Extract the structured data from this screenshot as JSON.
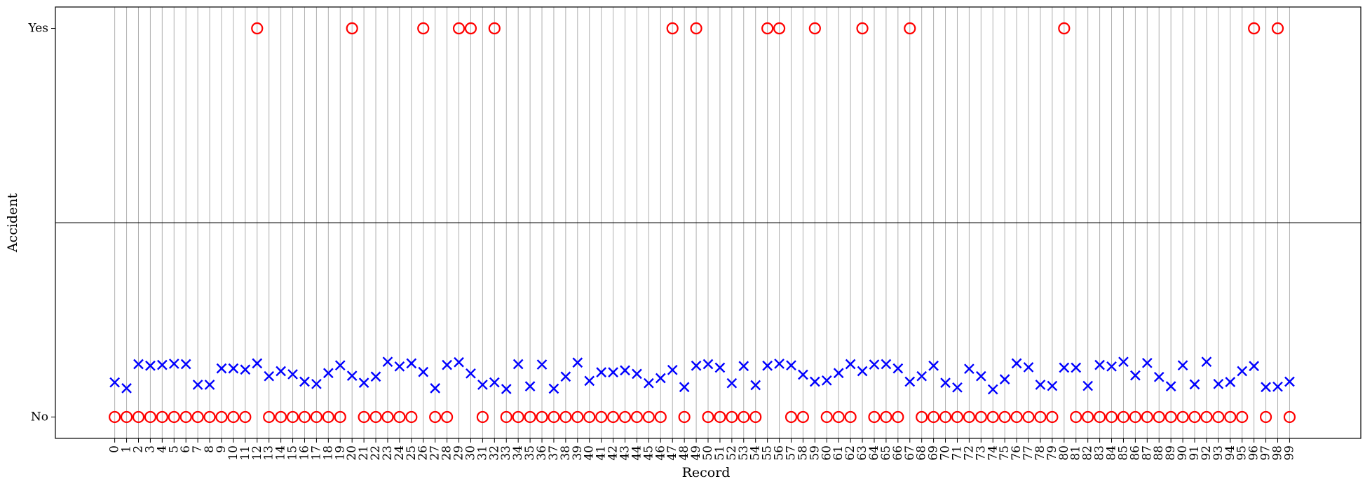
{
  "chart_data": {
    "type": "scatter",
    "xlabel": "Record",
    "ylabel": "Accident",
    "y_categories": [
      "No",
      "Yes"
    ],
    "x": [
      0,
      1,
      2,
      3,
      4,
      5,
      6,
      7,
      8,
      9,
      10,
      11,
      12,
      13,
      14,
      15,
      16,
      17,
      18,
      19,
      20,
      21,
      22,
      23,
      24,
      25,
      26,
      27,
      28,
      29,
      30,
      31,
      32,
      33,
      34,
      35,
      36,
      37,
      38,
      39,
      40,
      41,
      42,
      43,
      44,
      45,
      46,
      47,
      48,
      49,
      50,
      51,
      52,
      53,
      54,
      55,
      56,
      57,
      58,
      59,
      60,
      61,
      62,
      63,
      64,
      65,
      66,
      67,
      68,
      69,
      70,
      71,
      72,
      73,
      74,
      75,
      76,
      77,
      78,
      79,
      80,
      81,
      82,
      83,
      84,
      85,
      86,
      87,
      88,
      89,
      90,
      91,
      92,
      93,
      94,
      95,
      96,
      97,
      98,
      99
    ],
    "xlim": [
      -5,
      105
    ],
    "ylim": [
      -0.055,
      1.055
    ],
    "grid": "vertical",
    "series": [
      {
        "marker": "circle",
        "color": "#ff0000",
        "values": [
          0,
          0,
          0,
          0,
          0,
          0,
          0,
          0,
          0,
          0,
          0,
          0,
          1,
          0,
          0,
          0,
          0,
          0,
          0,
          0,
          1,
          0,
          0,
          0,
          0,
          0,
          1,
          0,
          0,
          1,
          1,
          0,
          1,
          0,
          0,
          0,
          0,
          0,
          0,
          0,
          0,
          0,
          0,
          0,
          0,
          0,
          0,
          1,
          0,
          1,
          0,
          0,
          0,
          0,
          0,
          1,
          1,
          0,
          0,
          1,
          0,
          0,
          0,
          1,
          0,
          0,
          0,
          1,
          0,
          0,
          0,
          0,
          0,
          0,
          0,
          0,
          0,
          0,
          0,
          0,
          1,
          0,
          0,
          0,
          0,
          0,
          0,
          0,
          0,
          0,
          0,
          0,
          0,
          0,
          0,
          0,
          1,
          0,
          1,
          0
        ]
      },
      {
        "marker": "x",
        "color": "#0000ff",
        "values": [
          0.089,
          0.074,
          0.136,
          0.132,
          0.134,
          0.137,
          0.136,
          0.083,
          0.083,
          0.125,
          0.125,
          0.122,
          0.138,
          0.105,
          0.118,
          0.11,
          0.091,
          0.085,
          0.113,
          0.133,
          0.106,
          0.088,
          0.104,
          0.142,
          0.13,
          0.138,
          0.116,
          0.074,
          0.134,
          0.141,
          0.112,
          0.083,
          0.089,
          0.072,
          0.136,
          0.079,
          0.135,
          0.073,
          0.104,
          0.14,
          0.093,
          0.115,
          0.115,
          0.12,
          0.111,
          0.087,
          0.1,
          0.121,
          0.077,
          0.132,
          0.136,
          0.127,
          0.087,
          0.131,
          0.082,
          0.132,
          0.137,
          0.133,
          0.109,
          0.091,
          0.094,
          0.113,
          0.136,
          0.118,
          0.135,
          0.136,
          0.125,
          0.091,
          0.105,
          0.132,
          0.088,
          0.076,
          0.124,
          0.105,
          0.071,
          0.097,
          0.138,
          0.128,
          0.083,
          0.08,
          0.127,
          0.127,
          0.08,
          0.134,
          0.13,
          0.142,
          0.107,
          0.139,
          0.103,
          0.079,
          0.133,
          0.084,
          0.142,
          0.085,
          0.09,
          0.118,
          0.131,
          0.077,
          0.078,
          0.091
        ]
      }
    ]
  }
}
